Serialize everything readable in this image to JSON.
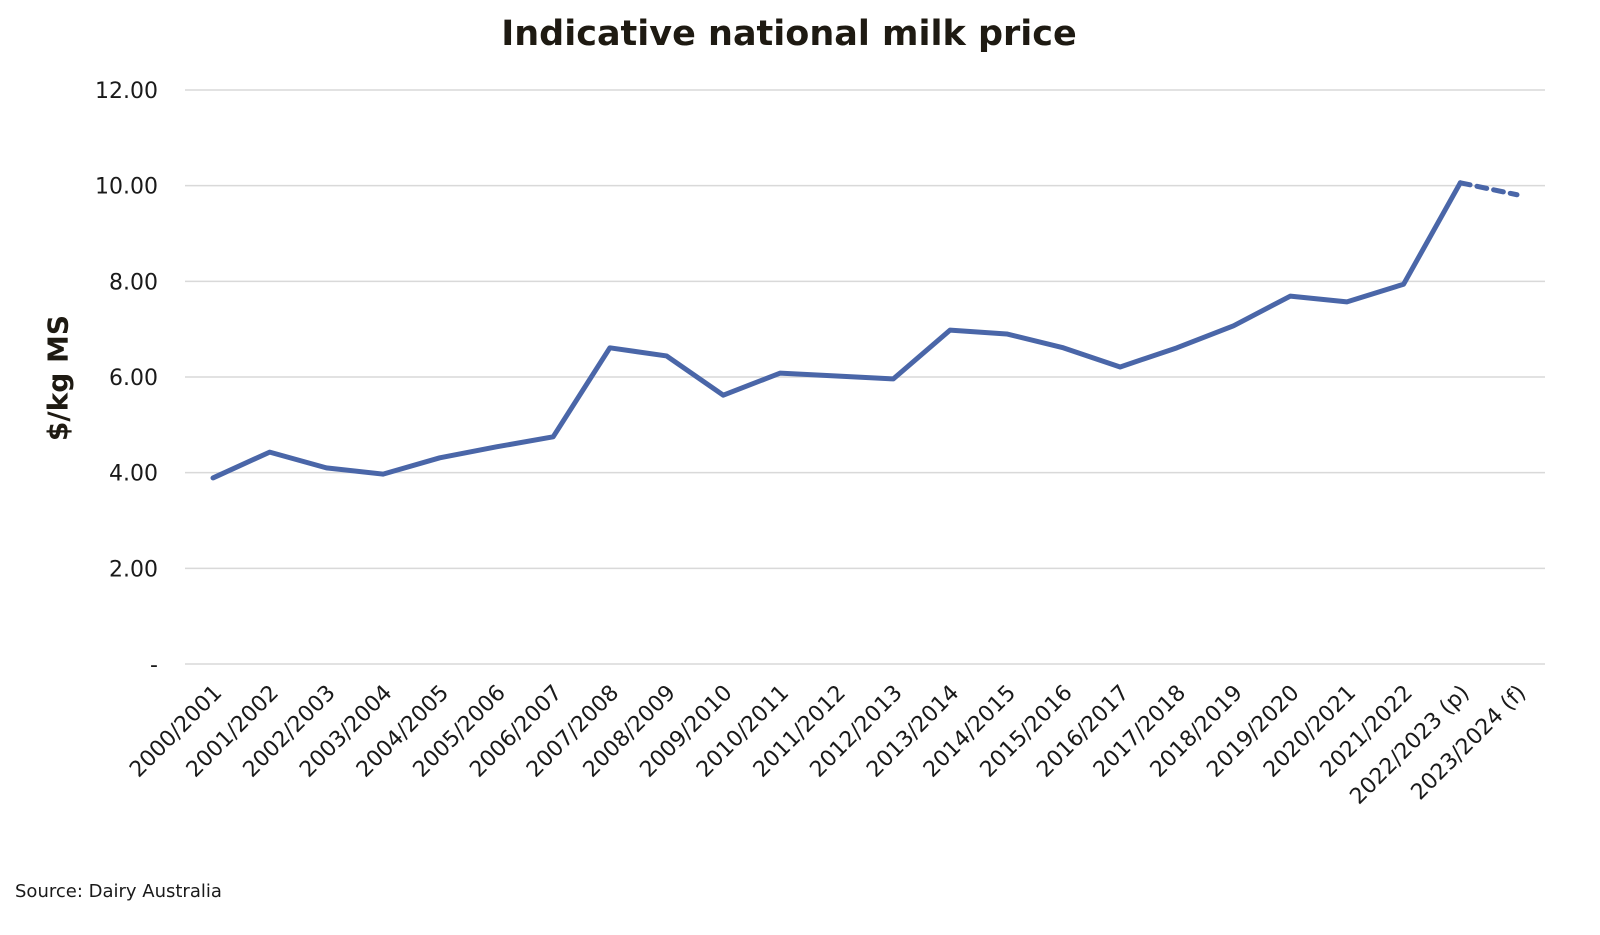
{
  "chart_data": {
    "type": "line",
    "title": "Indicative national milk price",
    "xlabel": "",
    "ylabel": "$/kg MS",
    "source": "Source: Dairy Australia",
    "ylim": [
      0,
      12
    ],
    "yticks": [
      0,
      2,
      4,
      6,
      8,
      10,
      12
    ],
    "ytick_labels": [
      "-",
      "2.00",
      "4.00",
      "6.00",
      "8.00",
      "10.00",
      "12.00"
    ],
    "grid": true,
    "legend": "none",
    "color": "#4a66a8",
    "categories": [
      "2000/2001",
      "2001/2002",
      "2002/2003",
      "2003/2004",
      "2004/2005",
      "2005/2006",
      "2006/2007",
      "2007/2008",
      "2008/2009",
      "2009/2010",
      "2010/2011",
      "2011/2012",
      "2012/2013",
      "2013/2014",
      "2014/2015",
      "2015/2016",
      "2016/2017",
      "2017/2018",
      "2018/2019",
      "2019/2020",
      "2020/2021",
      "2021/2022",
      "2022/2023 (p)",
      "2023/2024 (f)"
    ],
    "values": [
      3.89,
      4.43,
      4.1,
      3.97,
      4.31,
      4.54,
      4.75,
      6.61,
      6.44,
      5.62,
      6.08,
      6.02,
      5.96,
      6.98,
      6.9,
      6.61,
      6.21,
      6.61,
      7.07,
      7.69,
      7.57,
      7.94,
      10.06,
      9.81
    ],
    "dashed_from_category": "2022/2023 (p)"
  }
}
